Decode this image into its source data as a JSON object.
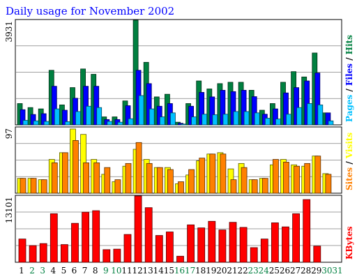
{
  "chart_data": {
    "type": "bar",
    "title": "Daily usage for November 2002",
    "x": [
      1,
      2,
      3,
      4,
      5,
      6,
      7,
      8,
      9,
      10,
      11,
      12,
      13,
      14,
      15,
      16,
      17,
      18,
      19,
      20,
      21,
      22,
      23,
      24,
      25,
      26,
      27,
      28,
      29,
      30,
      31
    ],
    "weekend_days": [
      2,
      3,
      9,
      10,
      16,
      17,
      23,
      24,
      30,
      31
    ],
    "panels": [
      {
        "id": "hits-files-pages",
        "ymax_label": "3931",
        "ymax": 3931,
        "legend": [
          "Pages",
          "/",
          "Files",
          "/",
          "Hits"
        ],
        "series": [
          {
            "name": "Hits",
            "color": "#008040",
            "values": [
              800,
              650,
              600,
              2050,
              750,
              1400,
              2100,
              1900,
              300,
              300,
              900,
              3931,
              2350,
              1050,
              1150,
              100,
              800,
              1650,
              1350,
              1550,
              1600,
              1600,
              1300,
              550,
              800,
              1600,
              2000,
              1800,
              2700,
              450
            ]
          },
          {
            "name": "Files",
            "color": "#0000ff",
            "values": [
              570,
              390,
              420,
              1450,
              550,
              1000,
              1450,
              1450,
              200,
              200,
              720,
              2050,
              1550,
              700,
              800,
              60,
              700,
              1220,
              1050,
              1300,
              1250,
              1300,
              1060,
              400,
              600,
              1200,
              1400,
              1650,
              1950,
              450
            ]
          },
          {
            "name": "Pages",
            "color": "#00c0ff",
            "values": [
              170,
              150,
              130,
              600,
              120,
              500,
              700,
              650,
              130,
              100,
              230,
              1100,
              600,
              300,
              450,
              30,
              300,
              400,
              380,
              400,
              500,
              500,
              450,
              250,
              220,
              400,
              650,
              800,
              750,
              150
            ]
          }
        ]
      },
      {
        "id": "visits-sites",
        "ymax_label": "97",
        "ymax": 97,
        "legend": [
          "Sites",
          "/",
          "Visits"
        ],
        "series": [
          {
            "name": "Visits",
            "color": "#ffff00",
            "values": [
              22,
              22,
              20,
              50,
              60,
              95,
              87,
              50,
              28,
              17,
              40,
              65,
              50,
              38,
              38,
              14,
              27,
              48,
              58,
              60,
              36,
              44,
              20,
              22,
              42,
              50,
              42,
              40,
              55,
              29
            ]
          },
          {
            "name": "Sites",
            "color": "#ff8000",
            "values": [
              22,
              22,
              20,
              45,
              60,
              78,
              45,
              45,
              38,
              20,
              44,
              75,
              44,
              38,
              35,
              17,
              35,
              52,
              58,
              58,
              20,
              38,
              20,
              22,
              50,
              46,
              40,
              44,
              55,
              28
            ]
          }
        ]
      },
      {
        "id": "kbytes",
        "ymax_label": "13101",
        "ymax": 13101,
        "legend": [
          "KBytes"
        ],
        "series": [
          {
            "name": "KBytes",
            "color": "#ff0000",
            "values": [
              4600,
              3300,
              3700,
              9600,
              3500,
              7700,
              9900,
              10200,
              2500,
              2600,
              5500,
              13101,
              10800,
              5300,
              6000,
              1200,
              7400,
              6800,
              8100,
              6400,
              7900,
              6900,
              2900,
              4600,
              7800,
              7000,
              9600,
              12400,
              3200,
              0
            ]
          }
        ]
      }
    ]
  }
}
